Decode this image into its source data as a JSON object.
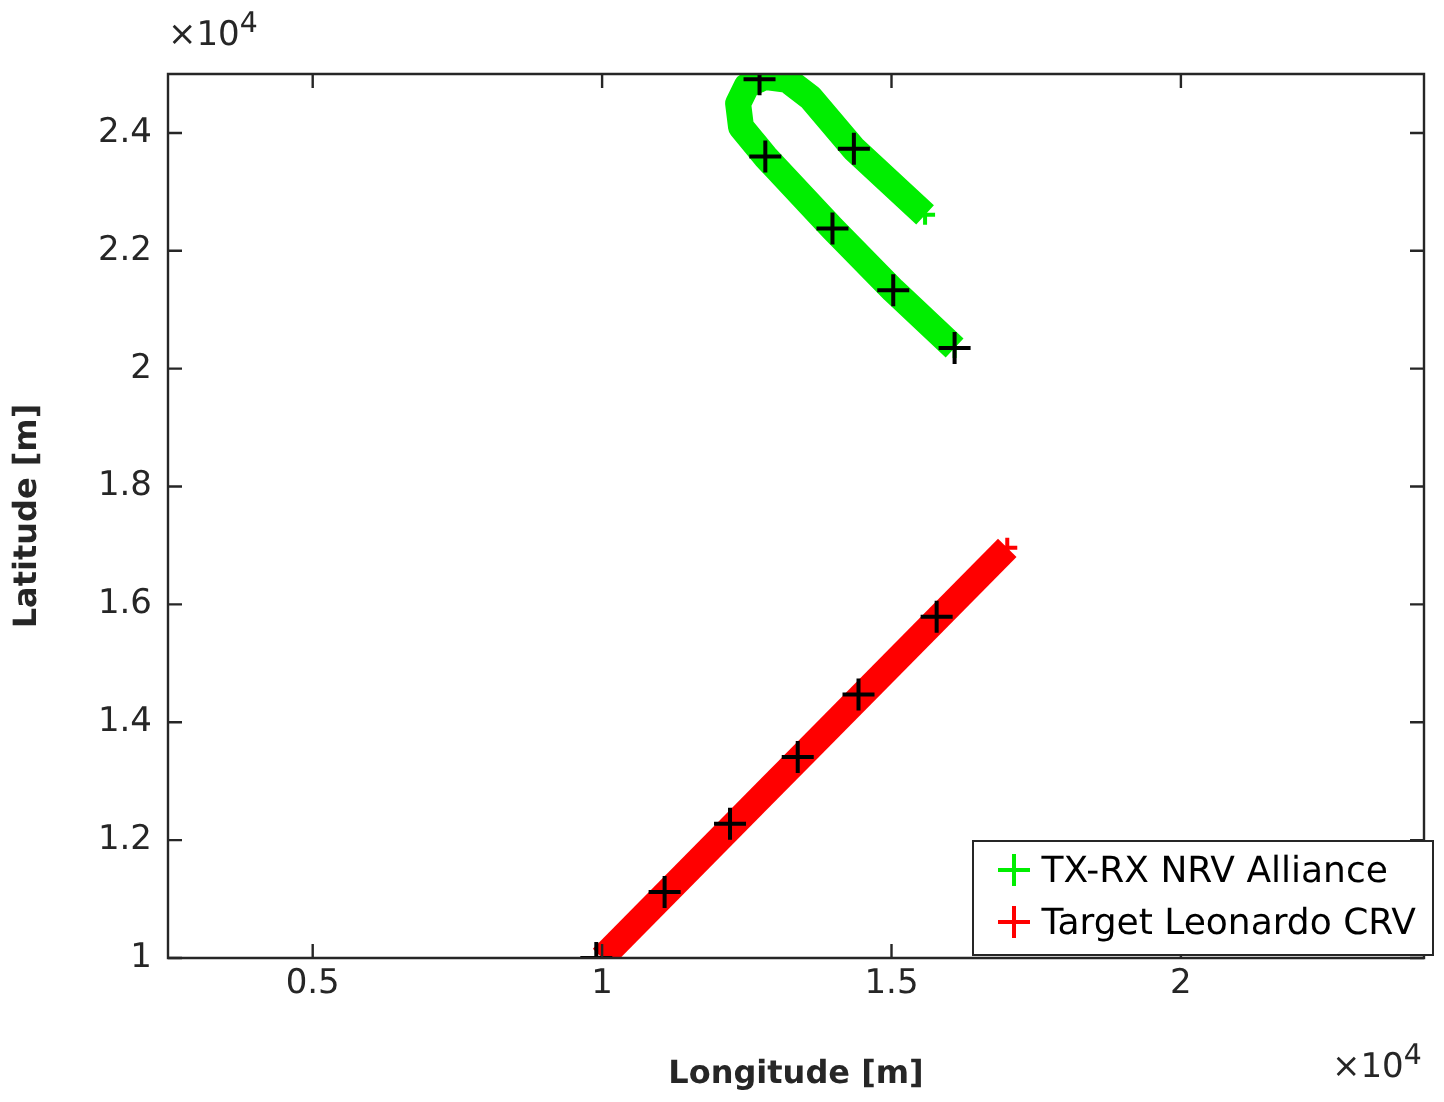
{
  "chart_data": {
    "type": "line",
    "xlabel": "Longitude [m]",
    "ylabel": "Latitude [m]",
    "xlim": [
      0.25,
      2.42
    ],
    "ylim": [
      1,
      2.5
    ],
    "xticks": [
      0.5,
      1,
      1.5,
      2
    ],
    "yticks": [
      1,
      1.2,
      1.4,
      1.6,
      1.8,
      2,
      2.2,
      2.4
    ],
    "grid": false,
    "legend": "bottom right",
    "line_style": "solid",
    "annotations": [
      "×10$^{4}$",
      "×10$^{4}$"
    ],
    "series": [
      {
        "name": "TX-RX NRV Alliance",
        "color": "#00ee00",
        "marker": "cross",
        "x": [
          1.609,
          1.503,
          1.398,
          1.282,
          1.24,
          1.235,
          1.25,
          1.28,
          1.32,
          1.36,
          1.435,
          1.558
        ],
        "values": [
          2.035,
          2.133,
          2.238,
          2.36,
          2.41,
          2.45,
          2.48,
          2.495,
          2.49,
          2.46,
          2.373,
          2.261
        ]
      },
      {
        "name": "Target Leonardo CRV",
        "color": "#ff0000",
        "marker": "cross",
        "x": [
          1.0,
          1.7
        ],
        "values": [
          1.0,
          1.696
        ]
      },
      {
        "color": "#000000",
        "type": "scatter",
        "marker": "cross",
        "x": [
          1.609,
          1.503,
          1.398,
          1.435,
          1.282,
          1.272
        ],
        "values": [
          2.035,
          2.133,
          2.238,
          2.373,
          2.36,
          2.491
        ]
      },
      {
        "color": "#000000",
        "type": "scatter",
        "marker": "cross",
        "x": [
          0.99,
          1.108,
          1.221,
          1.338,
          1.443,
          1.578
        ],
        "values": [
          1.0,
          1.112,
          1.228,
          1.341,
          1.447,
          1.579
        ]
      }
    ]
  }
}
